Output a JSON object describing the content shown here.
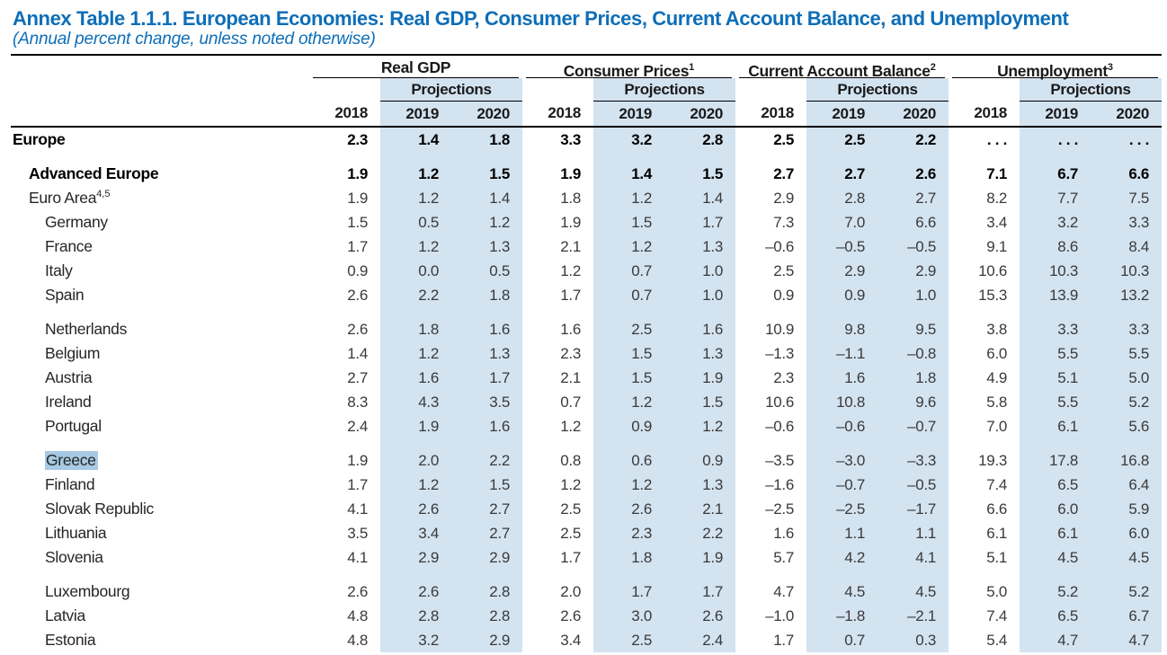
{
  "title": "Annex Table 1.1.1. European Economies: Real GDP, Consumer Prices, Current Account Balance, and Unemployment",
  "subtitle": "(Annual percent change, unless noted otherwise)",
  "colors": {
    "title_blue": "#0d6eb8",
    "projection_band": "#d3e3f0",
    "greece_highlight": "#a7c9e3"
  },
  "table": {
    "projections_label": "Projections",
    "years": [
      "2018",
      "2019",
      "2020"
    ],
    "groups": [
      {
        "label": "Real GDP",
        "sup": ""
      },
      {
        "label": "Consumer Prices",
        "sup": "1"
      },
      {
        "label": "Current Account Balance",
        "sup": "2"
      },
      {
        "label": "Unemployment",
        "sup": "3"
      }
    ],
    "rows": [
      {
        "label": "Europe",
        "sup": "",
        "indent": 0,
        "bold": true,
        "highlight": false,
        "gap_before": false,
        "values": [
          "2.3",
          "1.4",
          "1.8",
          "3.3",
          "3.2",
          "2.8",
          "2.5",
          "2.5",
          "2.2",
          ". . .",
          ". . .",
          ". . ."
        ]
      },
      {
        "label": "Advanced Europe",
        "sup": "",
        "indent": 1,
        "bold": true,
        "highlight": false,
        "gap_before": true,
        "values": [
          "1.9",
          "1.2",
          "1.5",
          "1.9",
          "1.4",
          "1.5",
          "2.7",
          "2.7",
          "2.6",
          "7.1",
          "6.7",
          "6.6"
        ]
      },
      {
        "label": "Euro Area",
        "sup": "4,5",
        "indent": 1,
        "bold": false,
        "highlight": false,
        "gap_before": false,
        "values": [
          "1.9",
          "1.2",
          "1.4",
          "1.8",
          "1.2",
          "1.4",
          "2.9",
          "2.8",
          "2.7",
          "8.2",
          "7.7",
          "7.5"
        ]
      },
      {
        "label": "Germany",
        "sup": "",
        "indent": 2,
        "bold": false,
        "highlight": false,
        "gap_before": false,
        "values": [
          "1.5",
          "0.5",
          "1.2",
          "1.9",
          "1.5",
          "1.7",
          "7.3",
          "7.0",
          "6.6",
          "3.4",
          "3.2",
          "3.3"
        ]
      },
      {
        "label": "France",
        "sup": "",
        "indent": 2,
        "bold": false,
        "highlight": false,
        "gap_before": false,
        "values": [
          "1.7",
          "1.2",
          "1.3",
          "2.1",
          "1.2",
          "1.3",
          "–0.6",
          "–0.5",
          "–0.5",
          "9.1",
          "8.6",
          "8.4"
        ]
      },
      {
        "label": "Italy",
        "sup": "",
        "indent": 2,
        "bold": false,
        "highlight": false,
        "gap_before": false,
        "values": [
          "0.9",
          "0.0",
          "0.5",
          "1.2",
          "0.7",
          "1.0",
          "2.5",
          "2.9",
          "2.9",
          "10.6",
          "10.3",
          "10.3"
        ]
      },
      {
        "label": "Spain",
        "sup": "",
        "indent": 2,
        "bold": false,
        "highlight": false,
        "gap_before": false,
        "values": [
          "2.6",
          "2.2",
          "1.8",
          "1.7",
          "0.7",
          "1.0",
          "0.9",
          "0.9",
          "1.0",
          "15.3",
          "13.9",
          "13.2"
        ]
      },
      {
        "label": "Netherlands",
        "sup": "",
        "indent": 2,
        "bold": false,
        "highlight": false,
        "gap_before": true,
        "values": [
          "2.6",
          "1.8",
          "1.6",
          "1.6",
          "2.5",
          "1.6",
          "10.9",
          "9.8",
          "9.5",
          "3.8",
          "3.3",
          "3.3"
        ]
      },
      {
        "label": "Belgium",
        "sup": "",
        "indent": 2,
        "bold": false,
        "highlight": false,
        "gap_before": false,
        "values": [
          "1.4",
          "1.2",
          "1.3",
          "2.3",
          "1.5",
          "1.3",
          "–1.3",
          "–1.1",
          "–0.8",
          "6.0",
          "5.5",
          "5.5"
        ]
      },
      {
        "label": "Austria",
        "sup": "",
        "indent": 2,
        "bold": false,
        "highlight": false,
        "gap_before": false,
        "values": [
          "2.7",
          "1.6",
          "1.7",
          "2.1",
          "1.5",
          "1.9",
          "2.3",
          "1.6",
          "1.8",
          "4.9",
          "5.1",
          "5.0"
        ]
      },
      {
        "label": "Ireland",
        "sup": "",
        "indent": 2,
        "bold": false,
        "highlight": false,
        "gap_before": false,
        "values": [
          "8.3",
          "4.3",
          "3.5",
          "0.7",
          "1.2",
          "1.5",
          "10.6",
          "10.8",
          "9.6",
          "5.8",
          "5.5",
          "5.2"
        ]
      },
      {
        "label": "Portugal",
        "sup": "",
        "indent": 2,
        "bold": false,
        "highlight": false,
        "gap_before": false,
        "values": [
          "2.4",
          "1.9",
          "1.6",
          "1.2",
          "0.9",
          "1.2",
          "–0.6",
          "–0.6",
          "–0.7",
          "7.0",
          "6.1",
          "5.6"
        ]
      },
      {
        "label": "Greece",
        "sup": "",
        "indent": 2,
        "bold": false,
        "highlight": true,
        "gap_before": true,
        "values": [
          "1.9",
          "2.0",
          "2.2",
          "0.8",
          "0.6",
          "0.9",
          "–3.5",
          "–3.0",
          "–3.3",
          "19.3",
          "17.8",
          "16.8"
        ]
      },
      {
        "label": "Finland",
        "sup": "",
        "indent": 2,
        "bold": false,
        "highlight": false,
        "gap_before": false,
        "values": [
          "1.7",
          "1.2",
          "1.5",
          "1.2",
          "1.2",
          "1.3",
          "–1.6",
          "–0.7",
          "–0.5",
          "7.4",
          "6.5",
          "6.4"
        ]
      },
      {
        "label": "Slovak Republic",
        "sup": "",
        "indent": 2,
        "bold": false,
        "highlight": false,
        "gap_before": false,
        "values": [
          "4.1",
          "2.6",
          "2.7",
          "2.5",
          "2.6",
          "2.1",
          "–2.5",
          "–2.5",
          "–1.7",
          "6.6",
          "6.0",
          "5.9"
        ]
      },
      {
        "label": "Lithuania",
        "sup": "",
        "indent": 2,
        "bold": false,
        "highlight": false,
        "gap_before": false,
        "values": [
          "3.5",
          "3.4",
          "2.7",
          "2.5",
          "2.3",
          "2.2",
          "1.6",
          "1.1",
          "1.1",
          "6.1",
          "6.1",
          "6.0"
        ]
      },
      {
        "label": "Slovenia",
        "sup": "",
        "indent": 2,
        "bold": false,
        "highlight": false,
        "gap_before": false,
        "values": [
          "4.1",
          "2.9",
          "2.9",
          "1.7",
          "1.8",
          "1.9",
          "5.7",
          "4.2",
          "4.1",
          "5.1",
          "4.5",
          "4.5"
        ]
      },
      {
        "label": "Luxembourg",
        "sup": "",
        "indent": 2,
        "bold": false,
        "highlight": false,
        "gap_before": true,
        "values": [
          "2.6",
          "2.6",
          "2.8",
          "2.0",
          "1.7",
          "1.7",
          "4.7",
          "4.5",
          "4.5",
          "5.0",
          "5.2",
          "5.2"
        ]
      },
      {
        "label": "Latvia",
        "sup": "",
        "indent": 2,
        "bold": false,
        "highlight": false,
        "gap_before": false,
        "values": [
          "4.8",
          "2.8",
          "2.8",
          "2.6",
          "3.0",
          "2.6",
          "–1.0",
          "–1.8",
          "–2.1",
          "7.4",
          "6.5",
          "6.7"
        ]
      },
      {
        "label": "Estonia",
        "sup": "",
        "indent": 2,
        "bold": false,
        "highlight": false,
        "gap_before": false,
        "values": [
          "4.8",
          "3.2",
          "2.9",
          "3.4",
          "2.5",
          "2.4",
          "1.7",
          "0.7",
          "0.3",
          "5.4",
          "4.7",
          "4.7"
        ]
      }
    ]
  }
}
